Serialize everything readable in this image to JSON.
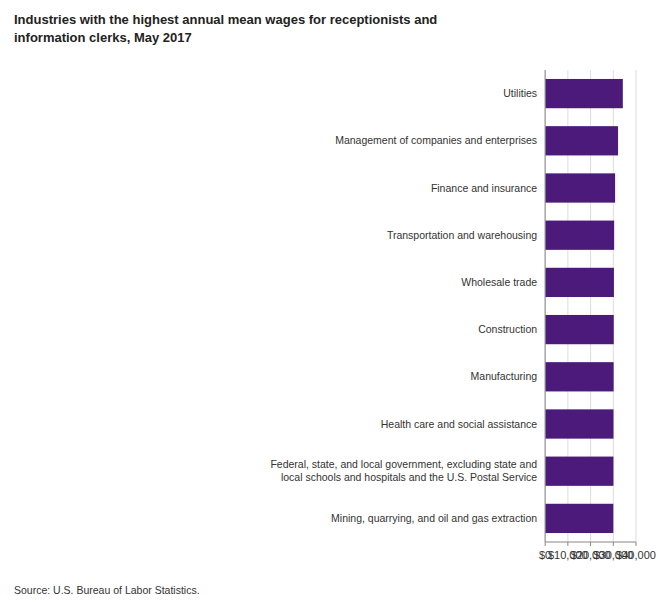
{
  "chart_data": {
    "type": "bar",
    "orientation": "horizontal",
    "title": "Industries with the highest annual mean wages for receptionists and\ninformation clerks, May 2017",
    "annotations": [
      "Source: U.S. Bureau of Labor Statistics."
    ],
    "categories": [
      "Mining, quarrying, and oil and gas extraction",
      "Federal, state, and local government, excluding state and\nlocal schools and hospitals and the U.S. Postal Service",
      "Health care and social assistance",
      "Manufacturing",
      "Construction",
      "Wholesale trade",
      "Transportation and warehousing",
      "Finance and insurance",
      "Management of companies and enterprises",
      "Utilities"
    ],
    "values": [
      30010,
      30060,
      30090,
      30150,
      30210,
      30280,
      30380,
      30800,
      32100,
      34200
    ],
    "color": "#4b1a7b",
    "xlim": [
      0,
      40000
    ],
    "xticks": [
      {
        "value": 0,
        "label": "$0"
      },
      {
        "value": 10000,
        "label": "$10,000"
      },
      {
        "value": 20000,
        "label": "$20,000"
      },
      {
        "value": 30000,
        "label": "$30,000"
      },
      {
        "value": 40000,
        "label": "$40,000"
      }
    ],
    "grid": true
  }
}
